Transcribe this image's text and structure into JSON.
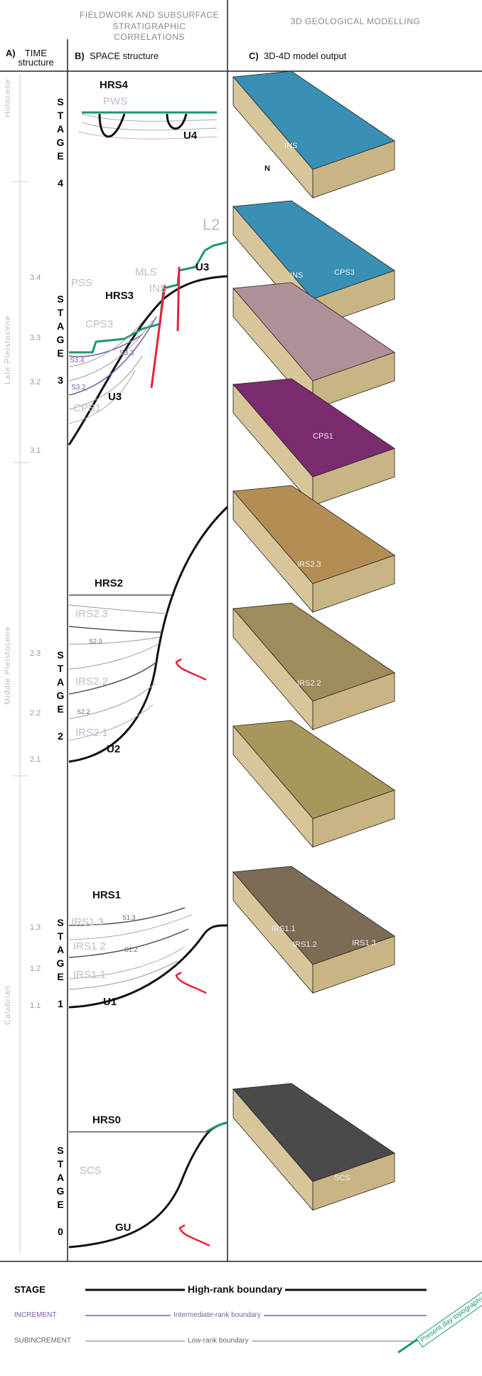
{
  "header": {
    "fieldwork": "FIELDWORK AND SUBSURFACE STRATIGRAPHIC CORRELATIONS",
    "modelling": "3D GEOLOGICAL MODELLING",
    "time": {
      "letter": "A)",
      "label": "TIME structure"
    },
    "space": {
      "letter": "B)",
      "label": "SPACE structure"
    },
    "model": {
      "letter": "C)",
      "label": "3D-4D model output"
    }
  },
  "epochs": [
    "Holocene",
    "Late Pleistocene",
    "Middle Pleistocene",
    "Calabrian"
  ],
  "stages": [
    "STAGE 4",
    "STAGE 3",
    "STAGE 2",
    "STAGE 1",
    "STAGE 0"
  ],
  "increments": [
    "3.4",
    "3.3",
    "3.2",
    "3.1",
    "2.3",
    "2.2",
    "2.1",
    "1.3",
    "1.2",
    "1.1"
  ],
  "section_labels": [
    "HRS4",
    "PWS",
    "U4",
    "L2",
    "PSS",
    "MLS",
    "INS",
    "U3",
    "HRS3",
    "CPS3",
    "S3.4",
    "S3.3",
    "S3.2",
    "U3",
    "CPS1",
    "HRS2",
    "IRS2.3",
    "S2.3",
    "IRS2.2",
    "S2.2",
    "IRS2.1",
    "U2",
    "HRS1",
    "IRS1.3",
    "S1.3",
    "IRS1.2",
    "S1.2",
    "IRS1.1",
    "U1",
    "HRS0",
    "SCS",
    "GU"
  ],
  "model_labels": [
    "INS",
    "N",
    "CPS3",
    "INS",
    "CPS1",
    "IRS2.3",
    "IRS2.2",
    "IRS1.1",
    "IRS1.2",
    "IRS1.3",
    "SCS"
  ],
  "legend": {
    "stage": "STAGE",
    "high": "High-rank boundary",
    "increment": "INCREMENT",
    "intermediate": "Intermediate-rank boundary",
    "subincrement": "SUBINCREMENT",
    "low": "Low-rank boundary",
    "topography": "Present day topography"
  }
}
